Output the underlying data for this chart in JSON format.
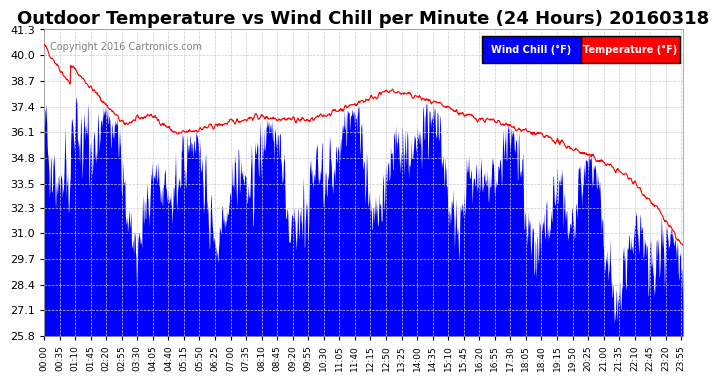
{
  "title": "Outdoor Temperature vs Wind Chill per Minute (24 Hours) 20160318",
  "copyright": "Copyright 2016 Cartronics.com",
  "ylabel": "",
  "ylim": [
    25.8,
    41.3
  ],
  "yticks": [
    25.8,
    27.1,
    28.4,
    29.7,
    31.0,
    32.3,
    33.5,
    34.8,
    36.1,
    37.4,
    38.7,
    40.0,
    41.3
  ],
  "wind_chill_color": "#0000ff",
  "temp_color": "#ff0000",
  "background_color": "#ffffff",
  "grid_color": "#cccccc",
  "legend_wind_chill_bg": "#0000ff",
  "legend_temp_bg": "#ff0000",
  "title_fontsize": 13,
  "x_tick_interval": 35
}
